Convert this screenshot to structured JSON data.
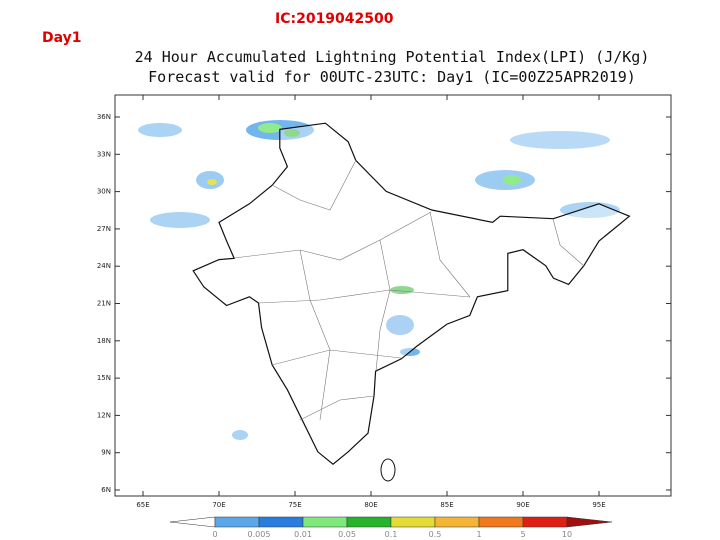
{
  "header": {
    "day": "Day1",
    "ic": "IC:2019042500"
  },
  "map": {
    "title": [
      "24 Hour Accumulated Lightning Potential Index(LPI) (J/Kg)",
      "Forecast valid for 00UTC-23UTC: Day1 (IC=00Z25APR2019)"
    ],
    "lat_labels": [
      "36N",
      "33N",
      "30N",
      "27N",
      "24N",
      "21N",
      "18N",
      "15N",
      "12N",
      "9N",
      "6N"
    ],
    "lon_labels": [
      "65E",
      "70E",
      "75E",
      "80E",
      "85E",
      "90E",
      "95E"
    ]
  },
  "colorbar": {
    "labels": [
      "0",
      "0.005",
      "0.01",
      "0.05",
      "0.1",
      "0.5",
      "1",
      "5",
      "10"
    ],
    "colors": [
      "#ffffff",
      "#5aa8ea",
      "#2a7de0",
      "#7ee87a",
      "#26b42a",
      "#e4dc34",
      "#f6b434",
      "#f2781e",
      "#e01e14",
      "#a00e0e"
    ]
  }
}
